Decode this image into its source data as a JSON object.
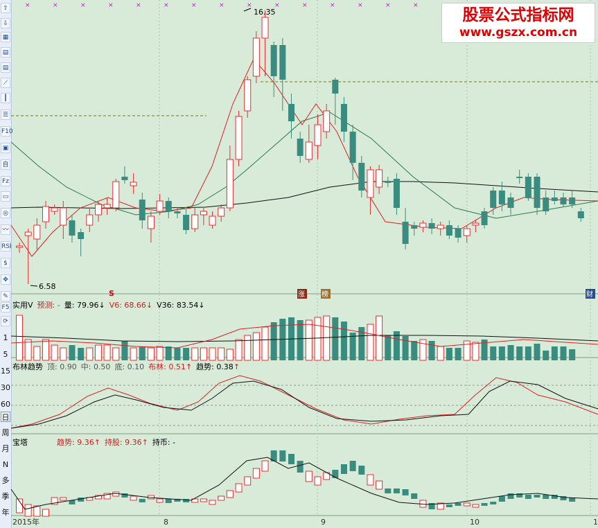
{
  "toolbar": {
    "icons": [
      "up-arrow-icon",
      "down-arrow-icon",
      "grid-icon",
      "table-icon",
      "table-icon",
      "line-chart-icon",
      "candle-icon",
      "list-icon",
      "f10-icon",
      "calc-icon",
      "stock-icon",
      "fz-icon",
      "tv-icon",
      "zoom-icon",
      "wave-icon",
      "rsi-icon",
      "dollar-icon",
      "move-icon",
      "pencil-icon",
      "f5-icon",
      "refresh-icon"
    ],
    "labels": {
      "f10": "F10",
      "rsi": "RSI",
      "fz": "Fz",
      "f5": "F5"
    },
    "period_labels": [
      "日",
      "周",
      "月",
      "N",
      "多",
      "季",
      "年"
    ],
    "axis_side_labels": [
      "1",
      "5",
      "15",
      "30",
      "60"
    ]
  },
  "watermark": {
    "title": "股票公式指标网",
    "url": "www.gszx.com.cn"
  },
  "main_chart": {
    "high_label": "16.35",
    "low_label": "6.58",
    "markers": {
      "s": "S",
      "m1": "涨",
      "m2": "榜",
      "cai": "财"
    },
    "colors": {
      "up": "#e83030",
      "down": "#3a8c80",
      "ma_short": "#e02020",
      "ma_mid": "#2a7a48",
      "ma_long": "#101010",
      "dash": "#7a7a00",
      "cross": "#c020c0"
    }
  },
  "volume_panel": {
    "name": "实用V",
    "forecast_label": "预测:",
    "forecast_value": "-",
    "vol_label": "量:",
    "vol_value": "79.96",
    "v6_label": "V6:",
    "v6_value": "68.66",
    "v36_label": "V36:",
    "v36_value": "83.54"
  },
  "bollinger_panel": {
    "name": "布林趋势",
    "top_label": "顶:",
    "top_value": "0.90",
    "mid_label": "中:",
    "mid_value": "0.50",
    "bottom_label": "底:",
    "bottom_value": "0.10",
    "bl_label": "布林:",
    "bl_value": "0.51",
    "trend_label": "趋势:",
    "trend_value": "0.38"
  },
  "tower_panel": {
    "name": "宝塔",
    "trend_label": "趋势:",
    "trend_value": "9.36",
    "hold_label": "持股:",
    "hold_value": "9.36",
    "coin_label": "持币:",
    "coin_value": "-"
  },
  "time_axis": {
    "labels": [
      "2015年",
      "8",
      "9",
      "10",
      "1"
    ]
  }
}
